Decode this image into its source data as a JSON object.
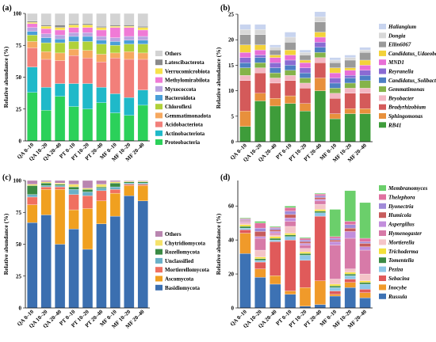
{
  "colors": {
    "a": {
      "Proteobacteria": "#2bd15a",
      "Actinobacteriota": "#1fb9c9",
      "Acidobacteriota": "#f27f7a",
      "Gemmatimonadota": "#f6a85f",
      "Chloroflexi": "#b0d13a",
      "Bacteroidota": "#4a9fd8",
      "Myxococcota": "#b9a3e0",
      "Methylomirabilota": "#f07ad6",
      "Verrucomicrobiota": "#f7e24a",
      "Latescibacterota": "#8a8a8a",
      "Others": "#d3d3d3"
    },
    "b": {
      "RB41": "#3e9c3a",
      "Sphingomonas": "#e8903c",
      "Bradyrhizobium": "#d45a5a",
      "Bryobacter": "#f3b7c3",
      "Gemmatimonas": "#85b34a",
      "Candidatus_Solibacter": "#4d7fc4",
      "Reyranella": "#8a6bd3",
      "MND1": "#e86ed6",
      "Candidatus_Udaeobacter": "#f3d23a",
      "Ellin6067": "#9a9a9a",
      "Dongia": "#d8d8d8",
      "Haliangium": "#c8d4ef"
    },
    "c": {
      "Basidiomycota": "#3b6fb0",
      "Ascomycota": "#f0a020",
      "Mortierellomycota": "#f07060",
      "Unclassified": "#6ab0c8",
      "Rozellomycota": "#3a8a44",
      "Chytridiomycota": "#f5e26a",
      "Others": "#b986b0"
    },
    "d": {
      "Russula": "#3d72b4",
      "Inocybe": "#f09a2a",
      "Sebacina": "#e05a5a",
      "Peziza": "#8ec7e8",
      "Tomentella": "#3a8a44",
      "Trichoderma": "#f3e03a",
      "Mortierella": "#f4c4c8",
      "Hymenogaster": "#d77aa8",
      "Aspergillus": "#c28edc",
      "Humicola": "#c75c5c",
      "Ilyonectria": "#a08ad8",
      "Thelephora": "#e070a0",
      "Membranomyces": "#6bcf6b"
    }
  },
  "chart_data": [
    {
      "panel_label": "(a)",
      "type": "bar",
      "stacked": true,
      "ylabel": "Relative abundance (%)",
      "ylim": [
        0,
        100
      ],
      "yticks": [
        0,
        25,
        50,
        75,
        100
      ],
      "categories": [
        "QA 0–10",
        "QA 10–20",
        "QA 20–40",
        "PT 0–10",
        "PT 10–20",
        "PT 20–40",
        "MF 0–10",
        "MF 10–20",
        "MF 20–40"
      ],
      "legend_position": "right",
      "series": [
        {
          "name": "Proteobacteria",
          "values": [
            38,
            24,
            35,
            27,
            25,
            30,
            22,
            20,
            28
          ]
        },
        {
          "name": "Actinobacteriota",
          "values": [
            20,
            18,
            10,
            18,
            20,
            12,
            15,
            14,
            12
          ]
        },
        {
          "name": "Acidobacteriota",
          "values": [
            15,
            22,
            18,
            22,
            20,
            20,
            28,
            30,
            24
          ]
        },
        {
          "name": "Gemmatimonadota",
          "values": [
            5,
            6,
            6,
            5,
            6,
            6,
            4,
            6,
            5
          ]
        },
        {
          "name": "Chloroflexi",
          "values": [
            5,
            7,
            8,
            6,
            7,
            8,
            6,
            6,
            7
          ]
        },
        {
          "name": "Bacteroidota",
          "values": [
            3,
            4,
            3,
            4,
            4,
            3,
            3,
            3,
            3
          ]
        },
        {
          "name": "Myxococcota",
          "values": [
            3,
            3,
            3,
            3,
            3,
            3,
            3,
            3,
            3
          ]
        },
        {
          "name": "Methylomirabilota",
          "values": [
            3,
            4,
            4,
            4,
            4,
            5,
            8,
            7,
            5
          ]
        },
        {
          "name": "Verrucomicrobiota",
          "values": [
            1,
            2,
            2,
            2,
            2,
            2,
            1,
            1,
            2
          ]
        },
        {
          "name": "Latescibacterota",
          "values": [
            1,
            1,
            2,
            1,
            1,
            1,
            1,
            1,
            1
          ]
        },
        {
          "name": "Others",
          "values": [
            6,
            9,
            9,
            8,
            8,
            10,
            9,
            9,
            10
          ]
        }
      ]
    },
    {
      "panel_label": "(b)",
      "type": "bar",
      "stacked": true,
      "ylabel": "Relative abundance (%)",
      "ylim": [
        0,
        25
      ],
      "yticks": [
        0,
        5,
        10,
        15,
        20,
        25
      ],
      "categories": [
        "QA 0–10",
        "QA 10–20",
        "QA 20–40",
        "PT 0–10",
        "PT 10–20",
        "PT 20–40",
        "MF 0–10",
        "MF 10–20",
        "MF 20–40"
      ],
      "legend_position": "right",
      "series": [
        {
          "name": "RB41",
          "values": [
            3,
            8,
            7,
            7.5,
            6,
            10,
            4.5,
            5.5,
            5.5
          ]
        },
        {
          "name": "Sphingomonas",
          "values": [
            3,
            1.5,
            1.5,
            1.5,
            1.5,
            2.5,
            1,
            1,
            1
          ]
        },
        {
          "name": "Bradyrhizobium",
          "values": [
            6,
            4,
            3,
            3,
            3,
            3,
            3,
            3,
            3
          ]
        },
        {
          "name": "Bryobacter",
          "values": [
            1,
            1,
            1,
            1,
            1,
            1,
            1,
            1,
            1
          ]
        },
        {
          "name": "Gemmatimonas",
          "values": [
            1.5,
            1,
            1,
            1,
            1,
            1,
            1,
            1,
            1.5
          ]
        },
        {
          "name": "Candidatus_Solibacter",
          "values": [
            1,
            1,
            1,
            1,
            1,
            1,
            1,
            1,
            1
          ]
        },
        {
          "name": "Reyranella",
          "values": [
            1,
            0.5,
            1,
            1,
            1,
            1,
            1,
            0.5,
            1
          ]
        },
        {
          "name": "MND1",
          "values": [
            1,
            1,
            1,
            1,
            1,
            1,
            1,
            1,
            1
          ]
        },
        {
          "name": "Candidatus_Udaeobacter",
          "values": [
            1.5,
            1,
            0.5,
            1,
            0.5,
            1,
            1,
            0.5,
            1
          ]
        },
        {
          "name": "Ellin6067",
          "values": [
            2,
            2,
            1,
            1.5,
            1,
            2,
            1,
            1.5,
            1.5
          ]
        },
        {
          "name": "Dongia",
          "values": [
            1,
            1,
            0.5,
            1,
            0.5,
            1,
            0.5,
            0.5,
            0.5
          ]
        },
        {
          "name": "Haliangium",
          "values": [
            1,
            1,
            0.5,
            1,
            0.5,
            1,
            0.5,
            0.5,
            0.5
          ]
        }
      ]
    },
    {
      "panel_label": "(c)",
      "type": "bar",
      "stacked": true,
      "ylabel": "Relative abundance (%)",
      "ylim": [
        0,
        100
      ],
      "yticks": [
        0,
        25,
        50,
        75,
        100
      ],
      "categories": [
        "QA 0–10",
        "QA 10–20",
        "QA 20–40",
        "PT 0–10",
        "PT 10–20",
        "PT 20–40",
        "MF 0–10",
        "MF 10–20",
        "MF 20–40"
      ],
      "legend_position": "right",
      "series": [
        {
          "name": "Basidiomycota",
          "values": [
            67,
            73,
            50,
            62,
            46,
            66,
            72,
            88,
            84
          ]
        },
        {
          "name": "Ascomycota",
          "values": [
            14,
            20,
            43,
            15,
            32,
            18,
            18,
            8,
            12
          ]
        },
        {
          "name": "Mortierellomycota",
          "values": [
            6,
            2,
            2,
            12,
            10,
            8,
            3,
            1,
            1
          ]
        },
        {
          "name": "Unclassified",
          "values": [
            2,
            1,
            1,
            4,
            3,
            2,
            2,
            1,
            1
          ]
        },
        {
          "name": "Rozellomycota",
          "values": [
            7,
            2,
            1,
            2,
            2,
            1,
            3,
            1,
            1
          ]
        },
        {
          "name": "Chytridiomycota",
          "values": [
            1,
            1,
            1,
            2,
            1,
            2,
            1,
            0.5,
            0.5
          ]
        },
        {
          "name": "Others",
          "values": [
            3,
            1,
            2,
            3,
            6,
            3,
            1,
            0.5,
            0.5
          ]
        }
      ]
    },
    {
      "panel_label": "(d)",
      "type": "bar",
      "stacked": true,
      "ylabel": "Relative abundance (%)",
      "ylim": [
        0,
        75
      ],
      "yticks": [
        0,
        20,
        40,
        60
      ],
      "categories": [
        "QA 0–10",
        "QA 10–20",
        "QA 20–40",
        "PT 0–10",
        "PT 10–20",
        "PT 20–40",
        "MF 0–10",
        "MF 10–20",
        "MF 20–40"
      ],
      "legend_position": "right",
      "series": [
        {
          "name": "Russula",
          "values": [
            32,
            18,
            14,
            8,
            1,
            2,
            7,
            12,
            6
          ]
        },
        {
          "name": "Inocybe",
          "values": [
            12,
            5,
            5,
            2,
            11,
            14,
            1,
            3,
            3
          ]
        },
        {
          "name": "Sebacina",
          "values": [
            2,
            4,
            20,
            30,
            16,
            38,
            2,
            2,
            2
          ]
        },
        {
          "name": "Peziza",
          "values": [
            1,
            1,
            1,
            2,
            3,
            2,
            2,
            2,
            3
          ]
        },
        {
          "name": "Tomentella",
          "values": [
            1,
            1,
            1,
            1,
            1,
            1,
            1,
            1,
            1
          ]
        },
        {
          "name": "Trichoderma",
          "values": [
            1,
            1,
            1,
            1,
            1,
            1,
            1,
            1,
            1
          ]
        },
        {
          "name": "Mortierella",
          "values": [
            1,
            4,
            1,
            4,
            2,
            3,
            3,
            2,
            4
          ]
        },
        {
          "name": "Hymenogaster",
          "values": [
            0.5,
            7,
            1,
            3,
            2,
            2,
            20,
            18,
            14
          ]
        },
        {
          "name": "Aspergillus",
          "values": [
            0.5,
            1,
            1,
            2,
            1,
            1,
            2,
            4,
            2
          ]
        },
        {
          "name": "Humicola",
          "values": [
            0.5,
            3,
            1,
            2,
            1,
            1,
            1,
            2,
            2
          ]
        },
        {
          "name": "Ilyonectria",
          "values": [
            0.5,
            2,
            1,
            2,
            1,
            1,
            1,
            2,
            1
          ]
        },
        {
          "name": "Thelephora",
          "values": [
            0.5,
            3,
            0.5,
            2,
            1,
            1,
            1,
            2,
            2
          ]
        },
        {
          "name": "Membranomyces",
          "values": [
            0.5,
            1,
            0.5,
            1,
            0.5,
            0.5,
            16,
            18,
            21
          ]
        }
      ]
    }
  ]
}
